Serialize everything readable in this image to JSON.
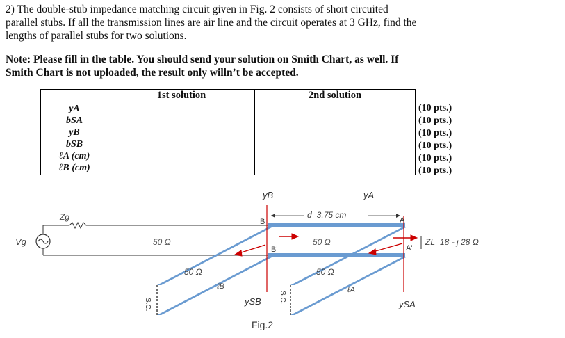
{
  "problem": {
    "line1": "2) The double-stub impedance matching circuit given in Fig. 2 consists of short circuited",
    "line2": "parallel stubs. If all the transmission lines are air line and the circuit operates at 3 GHz, find the",
    "line3": "lengths of parallel stubs for two solutions."
  },
  "note": {
    "line1": "Note: Please fill in the table. You should send your solution on Smith Chart, as well. If",
    "line2": "Smith Chart is not uploaded, the result only willn’t be accepted."
  },
  "table": {
    "headers": [
      "1st solution",
      "2nd solution"
    ],
    "rows": [
      "yA",
      "bSA",
      "yB",
      "bSB",
      "ℓA (cm)",
      "ℓB (cm)"
    ],
    "points": [
      "(10 pts.)",
      "(10 pts.)",
      "(10 pts.)",
      "(10 pts.)",
      "(10 pts.)",
      "(10 pts.)"
    ]
  },
  "figure": {
    "yB": "yB",
    "yA": "yA",
    "distance": "d=3.75 cm",
    "line1_z": "50 Ω",
    "line2_z": "50 Ω",
    "stub1_z": "50 Ω",
    "stub2_z": "50 Ω",
    "node_B": "B",
    "node_Bp": "B'",
    "node_A": "A",
    "node_Ap": "A'",
    "load": "ZL=18 - j 28 Ω",
    "zg": "Zg",
    "vg": "Vg",
    "sc1": "S.C.",
    "sc2": "S.C.",
    "lB": "ℓB",
    "lA": "ℓA",
    "ySB": "ySB",
    "ySA": "ySA",
    "caption": "Fig.2"
  }
}
